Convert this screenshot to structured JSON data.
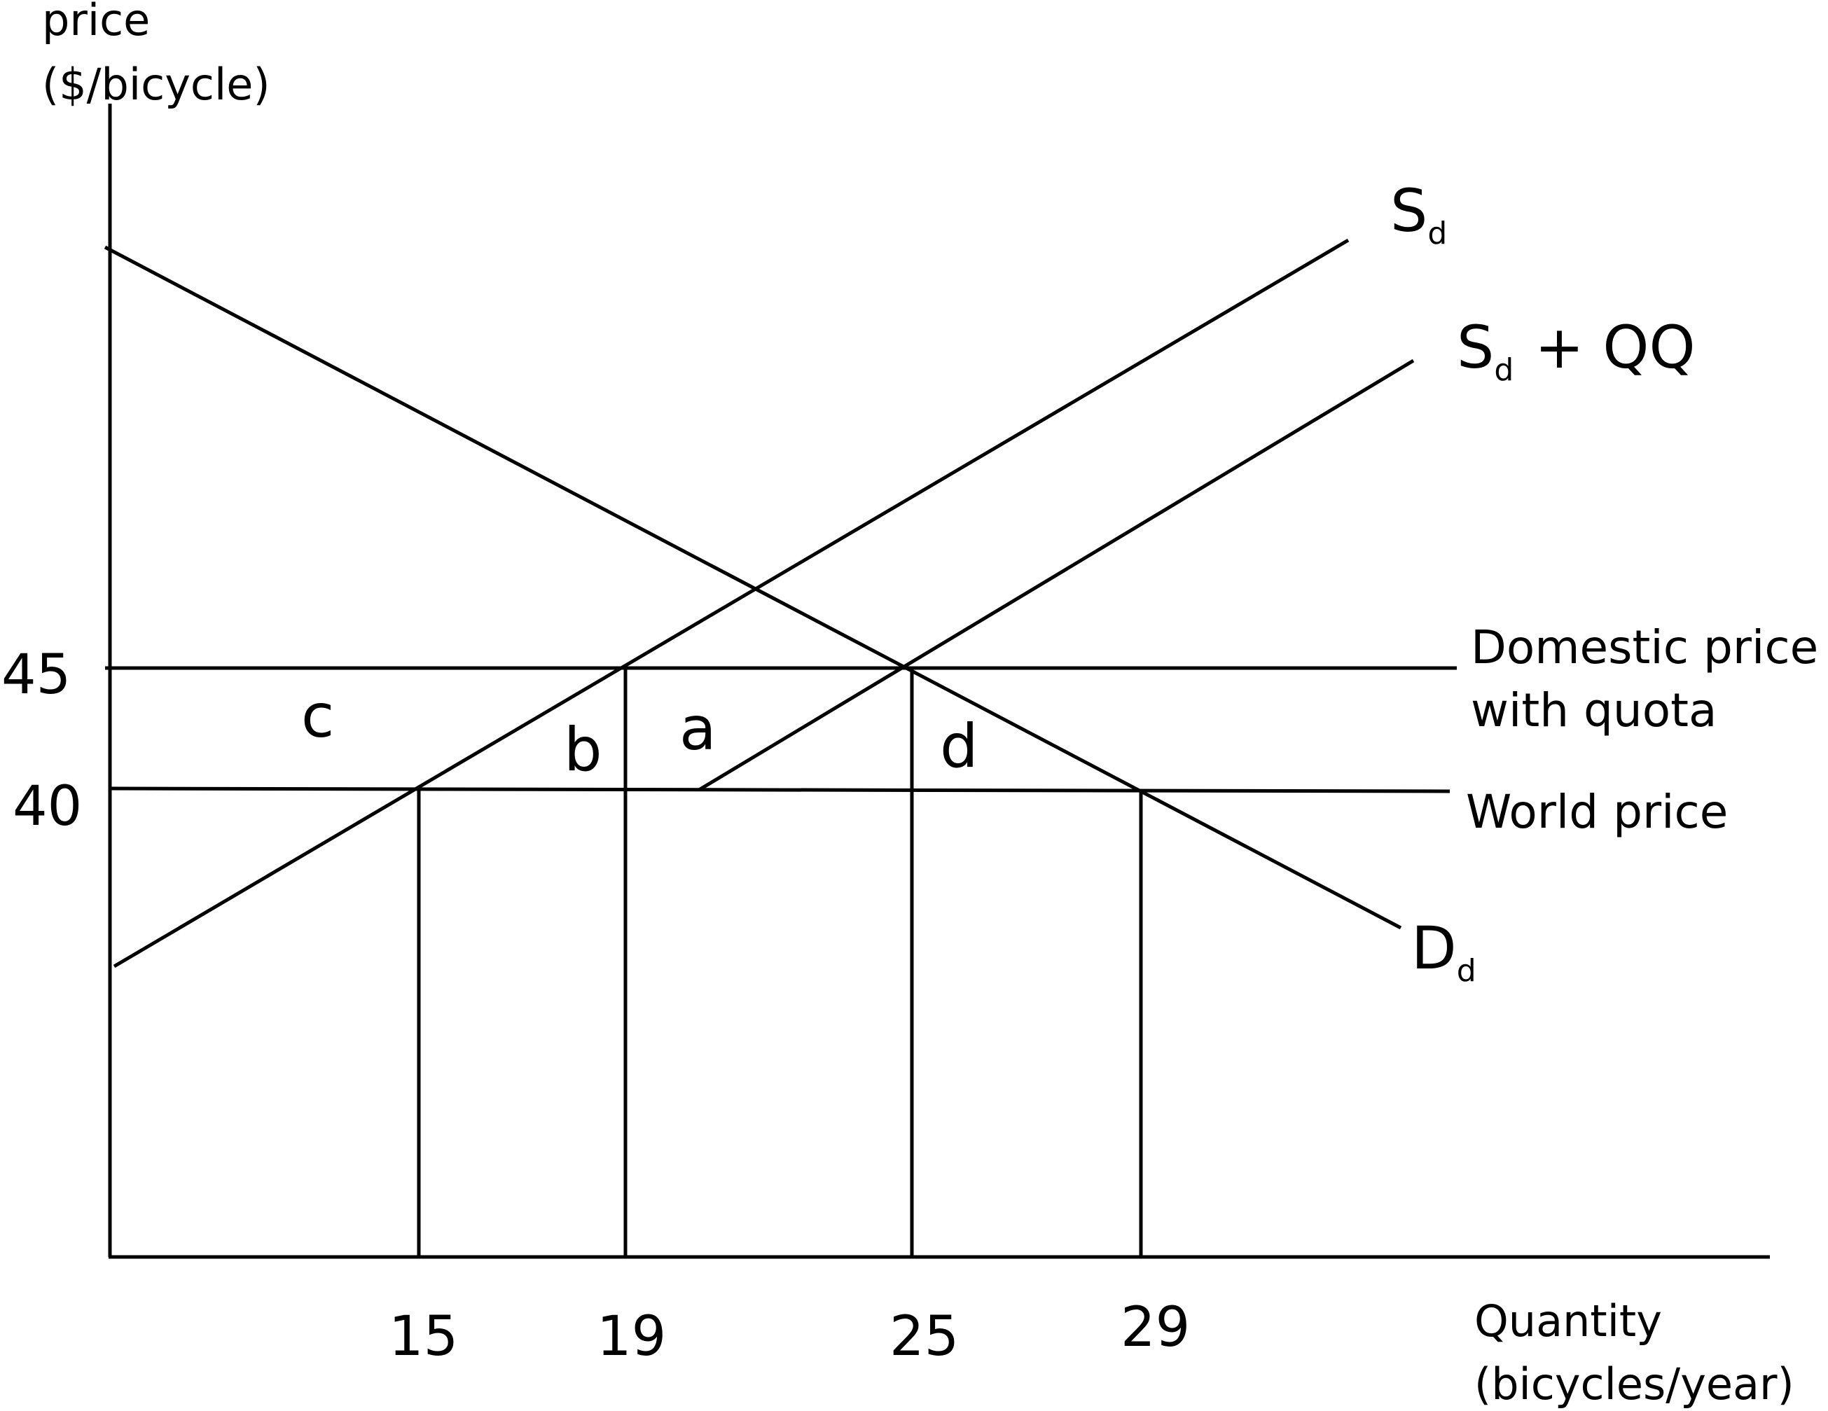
{
  "chart_data": {
    "type": "line",
    "title": "",
    "ylabel_line1": "price",
    "ylabel_line2": "($/bicycle)",
    "xlabel_line1": "Quantity",
    "xlabel_line2": "(bicycles/year)",
    "x_ticks": [
      "15",
      "19",
      "25",
      "29"
    ],
    "y_ticks": [
      "45",
      "40"
    ],
    "curves": {
      "supply": {
        "main": "S",
        "sub": "d"
      },
      "supply_quota": {
        "main": "S",
        "sub": "d",
        "suffix": "+ QQ"
      },
      "demand": {
        "main": "D",
        "sub": "d"
      }
    },
    "hlines": {
      "domestic_line1": "Domestic price",
      "domestic_line2": "with quota",
      "world": "World price"
    },
    "regions": [
      "c",
      "b",
      "a",
      "d"
    ],
    "points": {
      "world_price": 40,
      "domestic_price": 45,
      "supply_at_world": 15,
      "supply_at_domestic": 19,
      "demand_at_domestic": 25,
      "demand_at_world": 29
    }
  }
}
